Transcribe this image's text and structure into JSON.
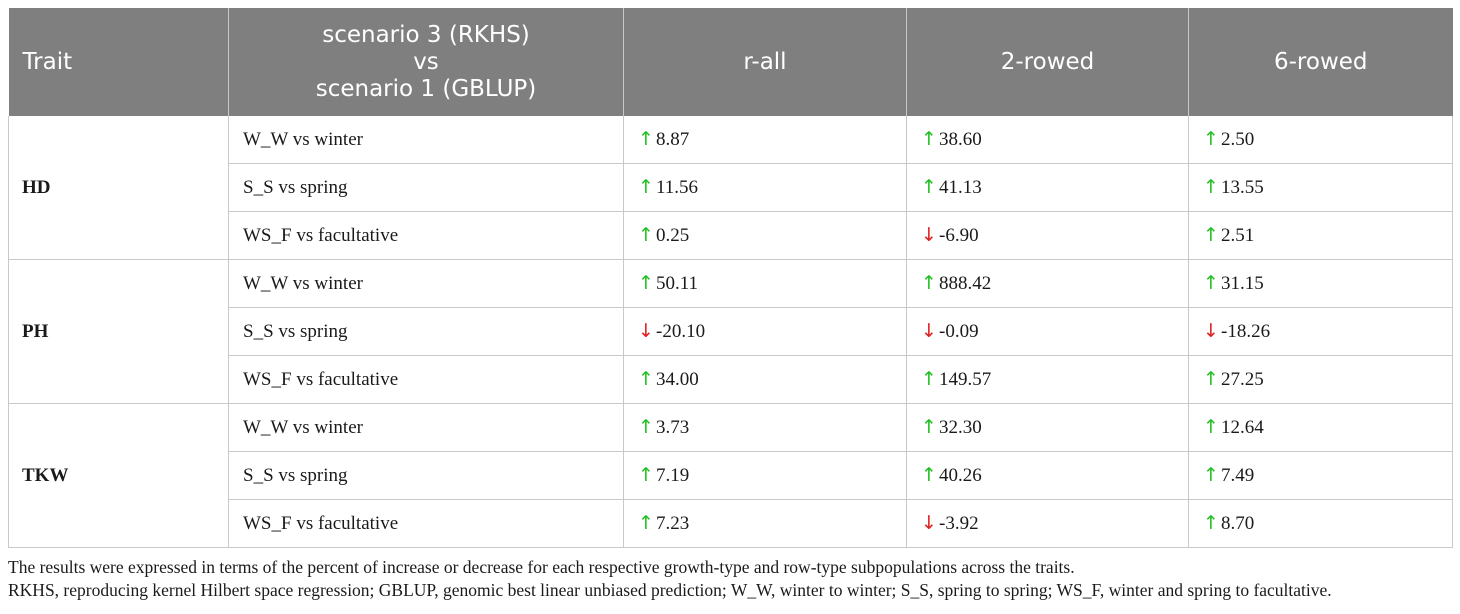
{
  "table": {
    "headers": {
      "trait": "Trait",
      "scenario_line1": "scenario 3 (RKHS)",
      "scenario_line2": "vs",
      "scenario_line3": "scenario 1 (GBLUP)",
      "r_all": "r-all",
      "two_rowed": "2-rowed",
      "six_rowed": "6-rowed"
    },
    "colors": {
      "header_bg": "#7f7f7f",
      "up_arrow": "#22c022",
      "down_arrow": "#e02020"
    },
    "arrows": {
      "up": "↑",
      "down": "↓"
    },
    "groups": [
      {
        "trait": "HD",
        "rows": [
          {
            "comparison": "W_W vs winter",
            "r_all": {
              "dir": "up",
              "value": "8.87"
            },
            "two_rowed": {
              "dir": "up",
              "value": "38.60"
            },
            "six_rowed": {
              "dir": "up",
              "value": "2.50"
            }
          },
          {
            "comparison": "S_S vs spring",
            "r_all": {
              "dir": "up",
              "value": "11.56"
            },
            "two_rowed": {
              "dir": "up",
              "value": "41.13"
            },
            "six_rowed": {
              "dir": "up",
              "value": "13.55"
            }
          },
          {
            "comparison": "WS_F vs facultative",
            "r_all": {
              "dir": "up",
              "value": "0.25"
            },
            "two_rowed": {
              "dir": "down",
              "value": "-6.90"
            },
            "six_rowed": {
              "dir": "up",
              "value": "2.51"
            }
          }
        ]
      },
      {
        "trait": "PH",
        "rows": [
          {
            "comparison": "W_W vs winter",
            "r_all": {
              "dir": "up",
              "value": "50.11"
            },
            "two_rowed": {
              "dir": "up",
              "value": "888.42"
            },
            "six_rowed": {
              "dir": "up",
              "value": "31.15"
            }
          },
          {
            "comparison": "S_S vs spring",
            "r_all": {
              "dir": "down",
              "value": "-20.10"
            },
            "two_rowed": {
              "dir": "down",
              "value": "-0.09"
            },
            "six_rowed": {
              "dir": "down",
              "value": "-18.26"
            }
          },
          {
            "comparison": "WS_F vs facultative",
            "r_all": {
              "dir": "up",
              "value": "34.00"
            },
            "two_rowed": {
              "dir": "up",
              "value": "149.57"
            },
            "six_rowed": {
              "dir": "up",
              "value": "27.25"
            }
          }
        ]
      },
      {
        "trait": "TKW",
        "rows": [
          {
            "comparison": "W_W vs winter",
            "r_all": {
              "dir": "up",
              "value": "3.73"
            },
            "two_rowed": {
              "dir": "up",
              "value": "32.30"
            },
            "six_rowed": {
              "dir": "up",
              "value": "12.64"
            }
          },
          {
            "comparison": "S_S vs spring",
            "r_all": {
              "dir": "up",
              "value": "7.19"
            },
            "two_rowed": {
              "dir": "up",
              "value": "40.26"
            },
            "six_rowed": {
              "dir": "up",
              "value": "7.49"
            }
          },
          {
            "comparison": "WS_F vs facultative",
            "r_all": {
              "dir": "up",
              "value": "7.23"
            },
            "two_rowed": {
              "dir": "down",
              "value": "-3.92"
            },
            "six_rowed": {
              "dir": "up",
              "value": "8.70"
            }
          }
        ]
      }
    ]
  },
  "notes": {
    "line1": "The results were expressed in terms of the percent of increase or decrease for each respective growth-type and row-type subpopulations across the traits.",
    "line2": "RKHS, reproducing kernel Hilbert space regression; GBLUP, genomic best linear unbiased prediction; W_W, winter to winter; S_S, spring to spring; WS_F, winter and spring to facultative."
  }
}
